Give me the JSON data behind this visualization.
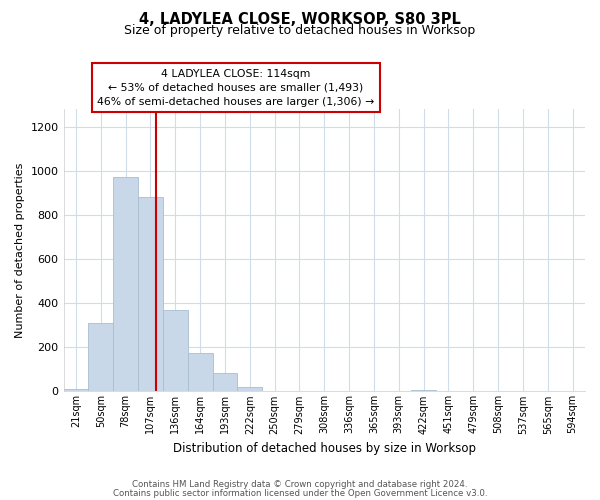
{
  "title": "4, LADYLEA CLOSE, WORKSOP, S80 3PL",
  "subtitle": "Size of property relative to detached houses in Worksop",
  "xlabel": "Distribution of detached houses by size in Worksop",
  "ylabel": "Number of detached properties",
  "bar_labels": [
    "21sqm",
    "50sqm",
    "78sqm",
    "107sqm",
    "136sqm",
    "164sqm",
    "193sqm",
    "222sqm",
    "250sqm",
    "279sqm",
    "308sqm",
    "336sqm",
    "365sqm",
    "393sqm",
    "422sqm",
    "451sqm",
    "479sqm",
    "508sqm",
    "537sqm",
    "565sqm",
    "594sqm"
  ],
  "bar_values": [
    10,
    310,
    975,
    880,
    370,
    175,
    82,
    20,
    2,
    0,
    0,
    0,
    0,
    0,
    5,
    0,
    0,
    0,
    0,
    0,
    0
  ],
  "bar_color": "#c8d8e8",
  "bar_edge_color": "#a8bece",
  "vline_color": "#cc0000",
  "vline_x_idx": 3,
  "annotation_title": "4 LADYLEA CLOSE: 114sqm",
  "annotation_line1": "← 53% of detached houses are smaller (1,493)",
  "annotation_line2": "46% of semi-detached houses are larger (1,306) →",
  "annotation_box_color": "#ffffff",
  "annotation_box_edge": "#cc0000",
  "ylim": [
    0,
    1280
  ],
  "yticks": [
    0,
    200,
    400,
    600,
    800,
    1000,
    1200
  ],
  "footer1": "Contains HM Land Registry data © Crown copyright and database right 2024.",
  "footer2": "Contains public sector information licensed under the Open Government Licence v3.0.",
  "bg_color": "#ffffff",
  "grid_color": "#d0dce8"
}
